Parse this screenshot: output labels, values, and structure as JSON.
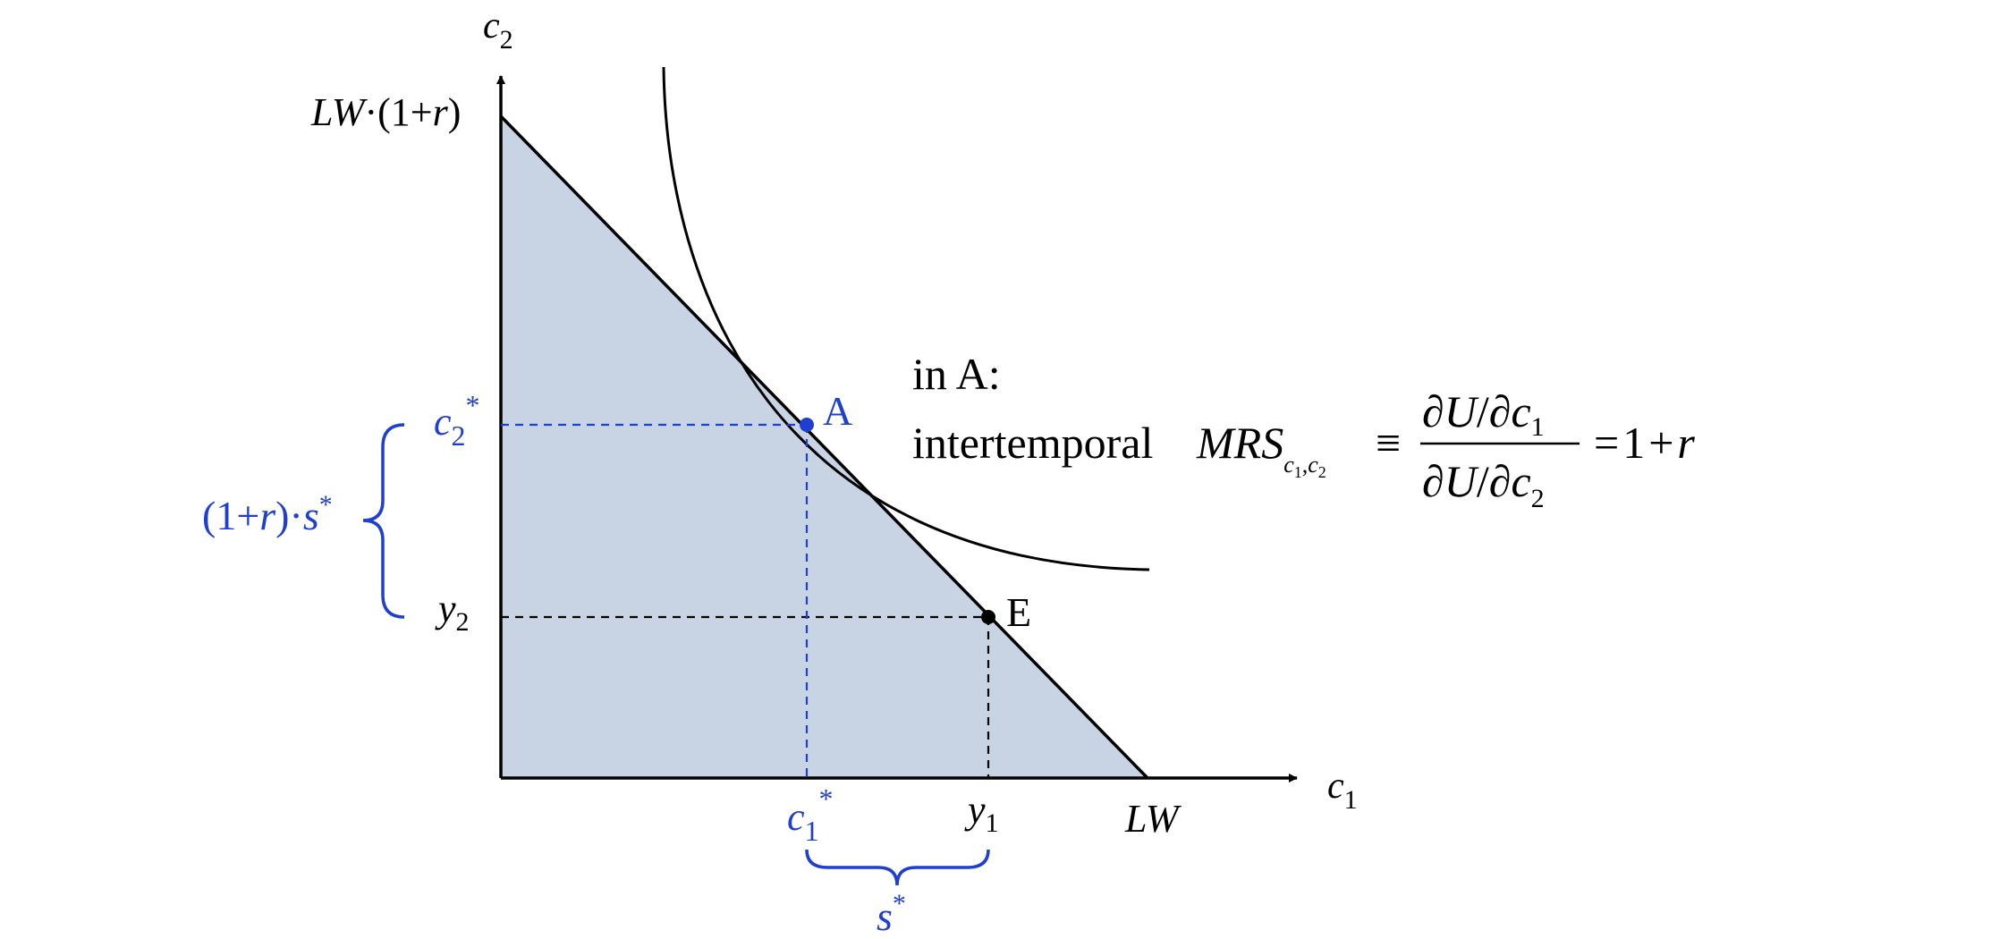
{
  "colors": {
    "black": "#000000",
    "blue": "#1f3fd2",
    "budget_fill": "#c8d4e4"
  },
  "axes": {
    "x_label_base": "c",
    "x_label_sub": "1",
    "y_label_base": "c",
    "y_label_sub": "2"
  },
  "labels": {
    "y_intercept": {
      "p1": "LW",
      "p2": "·(1+",
      "p3": "r",
      "p4": ")"
    },
    "x_intercept": "LW",
    "c2_star": {
      "base": "c",
      "sub": "2",
      "sup": "*"
    },
    "c1_star": {
      "base": "c",
      "sub": "1",
      "sup": "*"
    },
    "y2": {
      "base": "y",
      "sub": "2"
    },
    "y1": {
      "base": "y",
      "sub": "1"
    },
    "point_A": "A",
    "point_E": "E",
    "savings_vertical": {
      "p1": "(1+",
      "p2": "r",
      "p3": ")·",
      "p4": "s",
      "p5": "*"
    },
    "savings_horizontal": {
      "base": "s",
      "sup": "*"
    }
  },
  "condition": {
    "line1": "in A:",
    "prefix": "intertemporal",
    "mrs": "MRS",
    "mrs_sub_c": "c",
    "mrs_sub_1": "1",
    "mrs_sub_comma": ",",
    "mrs_sub_c2": "c",
    "mrs_sub_2": "2",
    "equiv": "≡",
    "num_d1": "∂",
    "num_U": "U",
    "num_slash": "/",
    "num_d2": "∂",
    "num_c": "c",
    "num_sub": "1",
    "den_d1": "∂",
    "den_U": "U",
    "den_slash": "/",
    "den_d2": "∂",
    "den_c": "c",
    "den_sub": "2",
    "rhs_eq": "=",
    "rhs_1": "1",
    "rhs_plus": "+",
    "rhs_r": "r"
  }
}
